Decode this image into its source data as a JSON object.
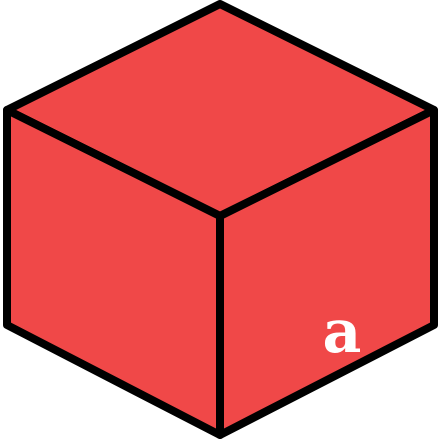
{
  "diagram": {
    "edge_label": "a",
    "colors": {
      "face_fill": "#f04848",
      "edge_stroke": "#000000",
      "label_color": "#ffffff",
      "background": "#ffffff"
    }
  }
}
